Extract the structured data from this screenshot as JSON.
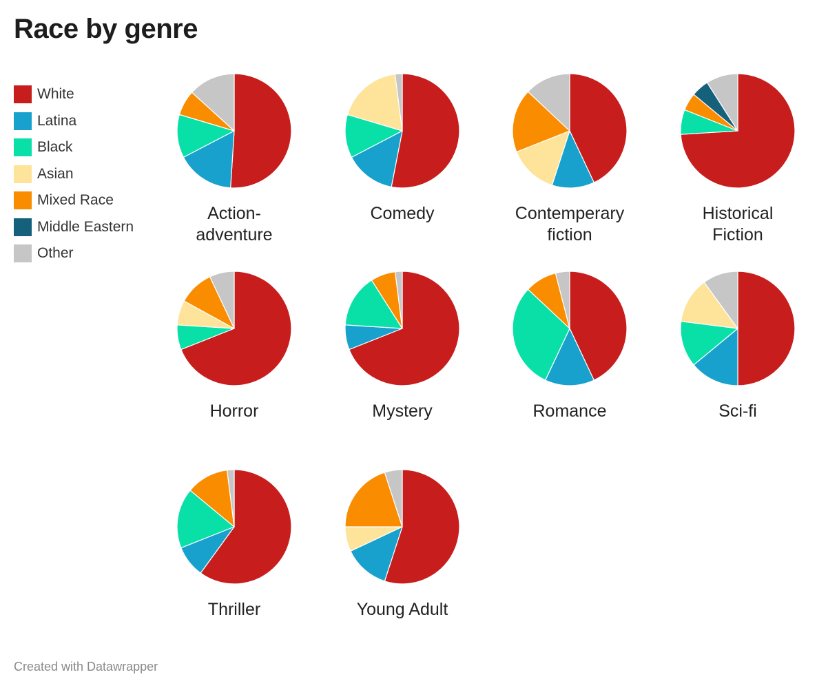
{
  "title": "Race by genre",
  "footer": "Created with Datawrapper",
  "colors": {
    "White": "#c71e1d",
    "Latina": "#18a1cd",
    "Black": "#09e0a8",
    "Asian": "#fee49b",
    "Mixed Race": "#fa8c00",
    "Middle Eastern": "#15607a",
    "Other": "#c6c6c6"
  },
  "chart_data": {
    "type": "pie",
    "title": "Race by genre",
    "legend": [
      "White",
      "Latina",
      "Black",
      "Asian",
      "Mixed Race",
      "Middle Eastern",
      "Other"
    ],
    "legend_position": "left",
    "charts": [
      {
        "label": "Action-\nadventure",
        "values": {
          "White": 50,
          "Latina": 16,
          "Black": 12,
          "Asian": 0,
          "Mixed Race": 7,
          "Middle Eastern": 0,
          "Other": 13
        }
      },
      {
        "label": "Comedy",
        "values": {
          "White": 52,
          "Latina": 14,
          "Black": 12,
          "Asian": 18,
          "Mixed Race": 0,
          "Middle Eastern": 0,
          "Other": 2
        }
      },
      {
        "label": "Contemperary\nfiction",
        "values": {
          "White": 43,
          "Latina": 12,
          "Black": 0,
          "Asian": 14,
          "Mixed Race": 18,
          "Middle Eastern": 0,
          "Other": 13
        }
      },
      {
        "label": "Historical\nFiction",
        "values": {
          "White": 74,
          "Latina": 0,
          "Black": 7,
          "Asian": 0,
          "Mixed Race": 5,
          "Middle Eastern": 5,
          "Other": 9
        }
      },
      {
        "label": "Horror",
        "values": {
          "White": 69,
          "Latina": 0,
          "Black": 7,
          "Asian": 7,
          "Mixed Race": 10,
          "Middle Eastern": 0,
          "Other": 7
        }
      },
      {
        "label": "Mystery",
        "values": {
          "White": 69,
          "Latina": 7,
          "Black": 15,
          "Asian": 0,
          "Mixed Race": 7,
          "Middle Eastern": 0,
          "Other": 2
        }
      },
      {
        "label": "Romance",
        "values": {
          "White": 43,
          "Latina": 14,
          "Black": 30,
          "Asian": 0,
          "Mixed Race": 9,
          "Middle Eastern": 0,
          "Other": 4
        }
      },
      {
        "label": "Sci-fi",
        "values": {
          "White": 50,
          "Latina": 14,
          "Black": 13,
          "Asian": 13,
          "Mixed Race": 0,
          "Middle Eastern": 0,
          "Other": 10
        }
      },
      {
        "label": "Thriller",
        "values": {
          "White": 60,
          "Latina": 9,
          "Black": 17,
          "Asian": 0,
          "Mixed Race": 12,
          "Middle Eastern": 0,
          "Other": 2
        }
      },
      {
        "label": "Young Adult",
        "values": {
          "White": 55,
          "Latina": 13,
          "Black": 0,
          "Asian": 7,
          "Mixed Race": 20,
          "Middle Eastern": 0,
          "Other": 5
        }
      }
    ]
  }
}
